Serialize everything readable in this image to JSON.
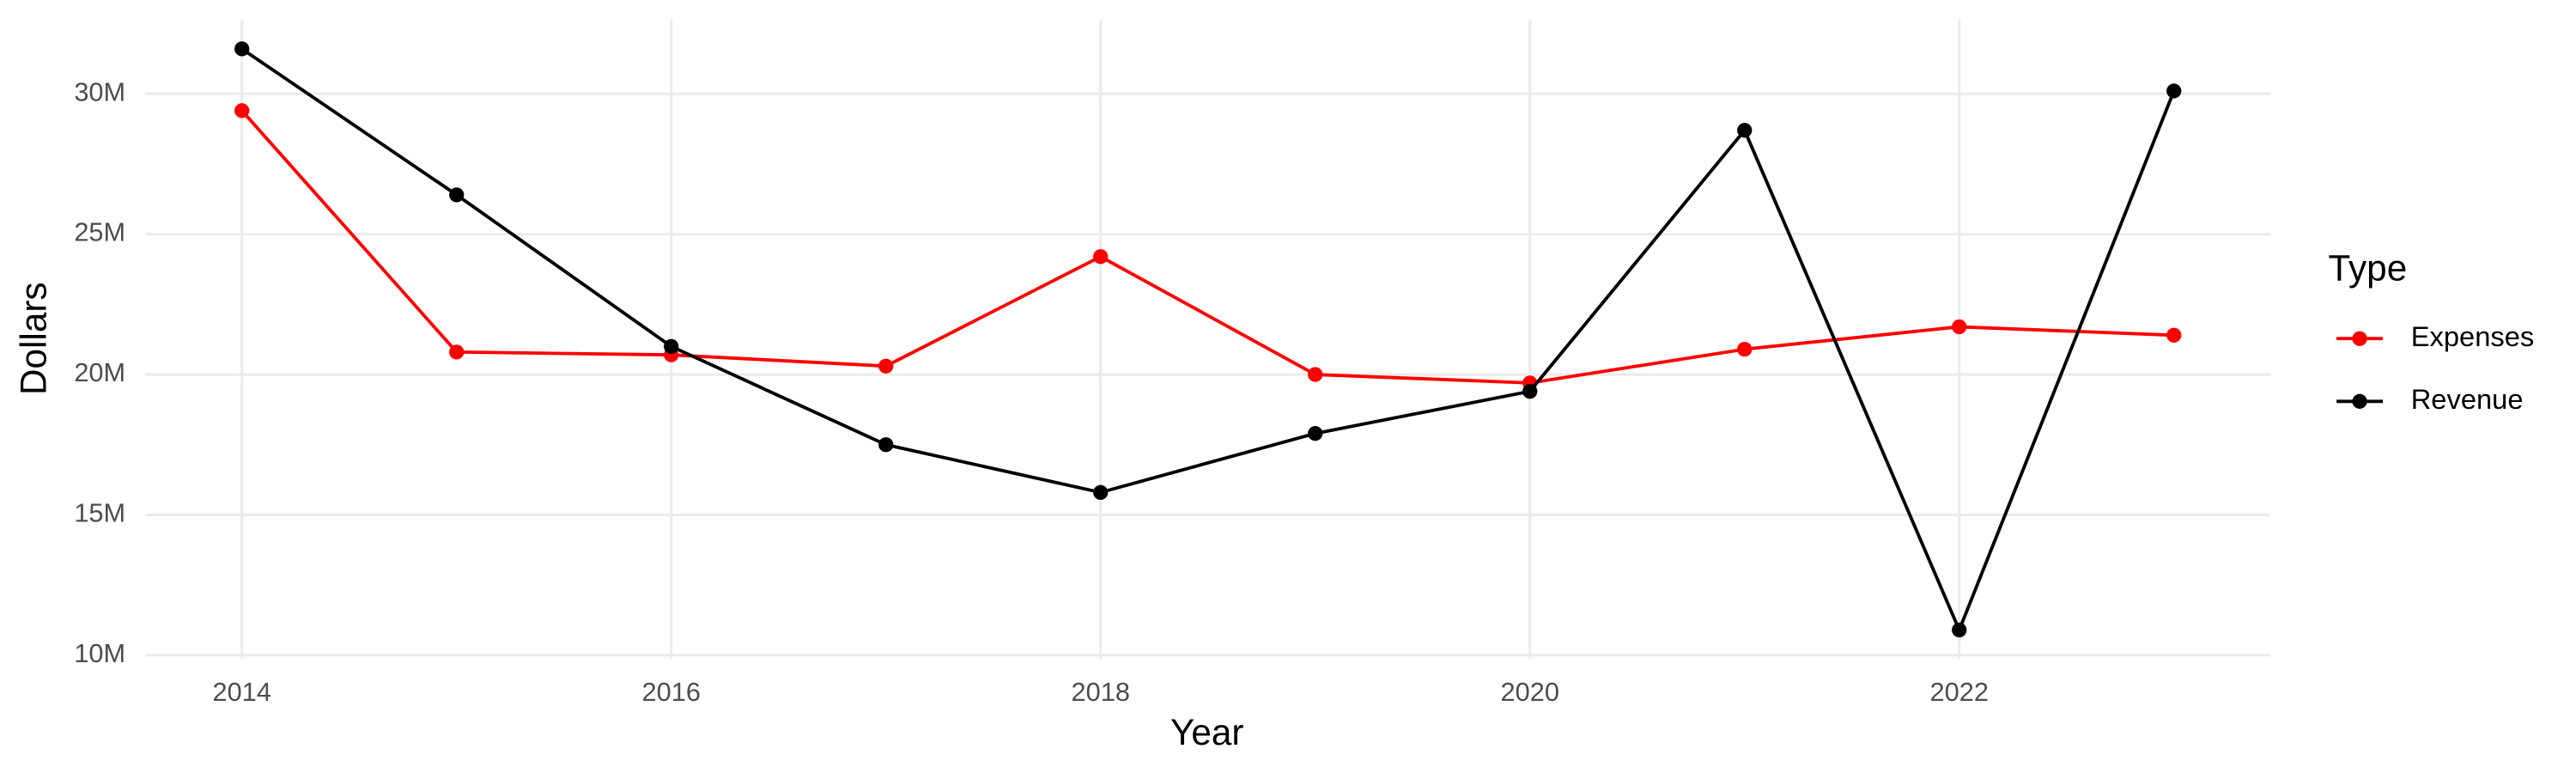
{
  "chart_data": {
    "type": "line",
    "x_label": "Year",
    "y_label": "Dollars",
    "x": [
      2014,
      2015,
      2016,
      2017,
      2018,
      2019,
      2020,
      2021,
      2022,
      2023
    ],
    "series": [
      {
        "name": "Expenses",
        "color": "#ff0000",
        "values": [
          29400000,
          20800000,
          20700000,
          20300000,
          24200000,
          20000000,
          19700000,
          20900000,
          21700000,
          21400000
        ]
      },
      {
        "name": "Revenue",
        "color": "#000000",
        "values": [
          31600000,
          26400000,
          21000000,
          17500000,
          15800000,
          17900000,
          19400000,
          28700000,
          10900000,
          30100000
        ]
      }
    ],
    "xlim": [
      2013.55,
      2023.45
    ],
    "xticks": [
      2014,
      2016,
      2018,
      2020,
      2022
    ],
    "ylim": [
      9865000,
      32635000
    ],
    "yticks": [
      {
        "value": 10000000,
        "label": "10M"
      },
      {
        "value": 15000000,
        "label": "15M"
      },
      {
        "value": 20000000,
        "label": "20M"
      },
      {
        "value": 25000000,
        "label": "25M"
      },
      {
        "value": 30000000,
        "label": "30M"
      }
    ],
    "grid": true,
    "legend_title": "Type",
    "legend_position": "right"
  }
}
